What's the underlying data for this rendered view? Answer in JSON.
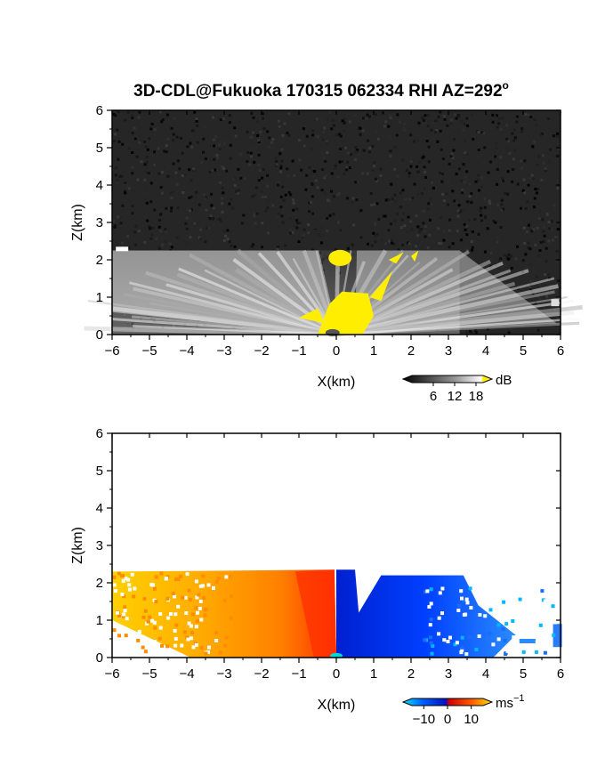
{
  "title": "3D-CDL@Fukuoka 170315 062334 RHI AZ=292",
  "title_degree": "o",
  "chart_data": [
    {
      "type": "heatmap",
      "quantity": "signal intensity",
      "xlabel": "X(km)",
      "ylabel": "Z(km)",
      "xlim": [
        -6,
        6
      ],
      "ylim": [
        0,
        6
      ],
      "xticks": [
        -6,
        -5,
        -4,
        -3,
        -2,
        -1,
        0,
        1,
        2,
        3,
        4,
        5,
        6
      ],
      "yticks": [
        0,
        1,
        2,
        3,
        4,
        5,
        6
      ],
      "colorbar": {
        "unit": "dB",
        "ticks": [
          6,
          12,
          18
        ],
        "min": 0,
        "max": 20,
        "colors": [
          "#000000",
          "#ffffff",
          "#ffee00"
        ]
      },
      "features": {
        "echo_top_km": 2.25,
        "yellow_core_x": [
          -0.5,
          1.0
        ],
        "yellow_core_z": [
          0.0,
          1.2
        ],
        "yellow_patch_center": [
          0.1,
          2.05
        ]
      }
    },
    {
      "type": "heatmap",
      "quantity": "radial velocity",
      "xlabel": "X(km)",
      "ylabel": "Z(km)",
      "xlim": [
        -6,
        6
      ],
      "ylim": [
        0,
        6
      ],
      "xticks": [
        -6,
        -5,
        -4,
        -3,
        -2,
        -1,
        0,
        1,
        2,
        3,
        4,
        5,
        6
      ],
      "yticks": [
        0,
        1,
        2,
        3,
        4,
        5,
        6
      ],
      "colorbar": {
        "unit": "ms",
        "unit_exp": "−1",
        "ticks": [
          "−10",
          "0",
          "10"
        ],
        "tick_values": [
          -10,
          0,
          10
        ],
        "min": -15,
        "max": 15,
        "colors": [
          "#00e0ff",
          "#0050ff",
          "#0010c0",
          "#e00000",
          "#ff6000",
          "#ffe000"
        ]
      },
      "features": {
        "echo_top_km": 2.35,
        "shear_x_km": 0.0,
        "west_velocity_ms": 8,
        "east_velocity_ms": -9
      }
    }
  ]
}
